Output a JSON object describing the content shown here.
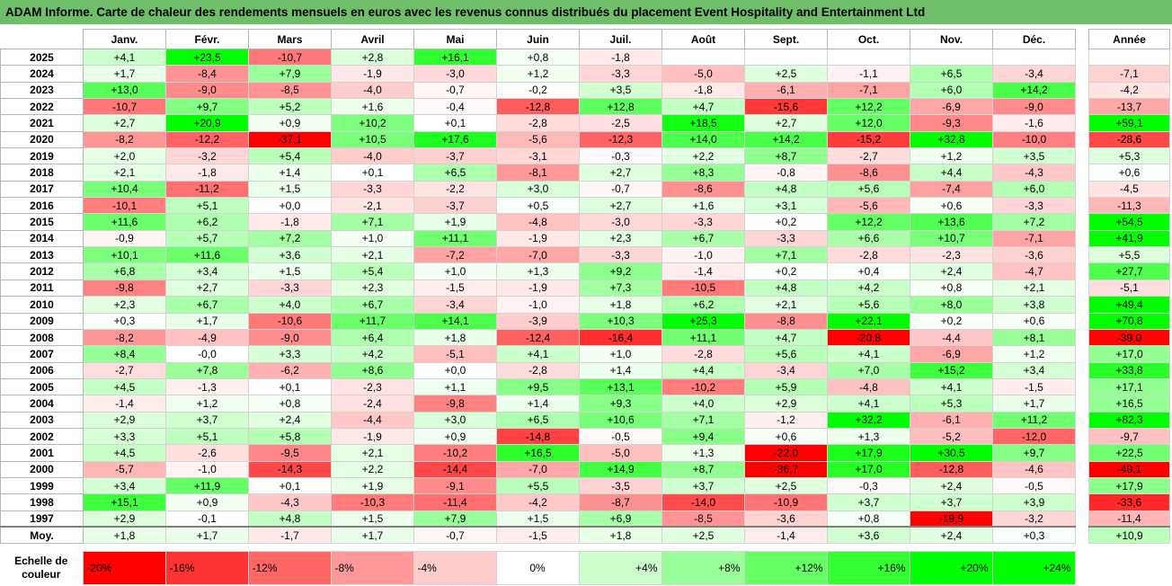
{
  "title": "ADAM Informe. Carte de chaleur des rendements mensuels en euros avec les revenus connus distribués du placement Event Hospitality and Entertainment Ltd",
  "chart_data": {
    "type": "heatmap",
    "months": [
      "Janv.",
      "Févr.",
      "Mars",
      "Avril",
      "Mai",
      "Juin",
      "Juil.",
      "Août",
      "Sept.",
      "Oct.",
      "Nov.",
      "Déc."
    ],
    "year_header": "Année",
    "rows": [
      {
        "year": "2025",
        "values": [
          "+4,1",
          "+23,5",
          "-10,7",
          "+2,8",
          "+16,1",
          "+0,8",
          "-1,8",
          "",
          "",
          "",
          "",
          ""
        ],
        "annual": ""
      },
      {
        "year": "2024",
        "values": [
          "+1,7",
          "-8,4",
          "+7,9",
          "-1,9",
          "-3,0",
          "+1,2",
          "-3,3",
          "-5,0",
          "+2,5",
          "-1,1",
          "+6,5",
          "-3,4"
        ],
        "annual": "-7,1"
      },
      {
        "year": "2023",
        "values": [
          "+13,0",
          "-9,0",
          "-8,5",
          "-4,0",
          "-0,7",
          "-0,2",
          "+3,5",
          "-1,8",
          "-6,1",
          "-7,1",
          "+6,0",
          "+14,2"
        ],
        "annual": "-4,2"
      },
      {
        "year": "2022",
        "values": [
          "-10,7",
          "+9,7",
          "+5,2",
          "+1,6",
          "-0,4",
          "-12,8",
          "+12,8",
          "+4,7",
          "-15,6",
          "+12,2",
          "-6,9",
          "-9,0"
        ],
        "annual": "-13,7"
      },
      {
        "year": "2021",
        "values": [
          "+2,7",
          "+20,9",
          "+0,9",
          "+10,2",
          "+0,1",
          "-2,8",
          "-2,5",
          "+18,5",
          "+2,7",
          "+12,0",
          "-9,3",
          "-1,6"
        ],
        "annual": "+59,1"
      },
      {
        "year": "2020",
        "values": [
          "-8,2",
          "-12,2",
          "-37,1",
          "+10,5",
          "+17,6",
          "-5,6",
          "-12,3",
          "+14,0",
          "+14,2",
          "-15,2",
          "+32,8",
          "-10,0"
        ],
        "annual": "-28,6"
      },
      {
        "year": "2019",
        "values": [
          "+2,0",
          "-3,2",
          "+5,4",
          "-4,0",
          "-3,7",
          "-3,1",
          "-0,3",
          "+2,2",
          "+8,7",
          "-2,7",
          "+1,2",
          "+3,5"
        ],
        "annual": "+5,3"
      },
      {
        "year": "2018",
        "values": [
          "+2,1",
          "-1,8",
          "+1,4",
          "+0,1",
          "+6,5",
          "-8,1",
          "+2,7",
          "+8,3",
          "-0,8",
          "-8,6",
          "+4,4",
          "-4,3"
        ],
        "annual": "+0,6"
      },
      {
        "year": "2017",
        "values": [
          "+10,4",
          "-11,2",
          "+1,5",
          "-3,3",
          "-2,2",
          "+3,0",
          "-0,7",
          "-8,6",
          "+4,8",
          "+5,6",
          "-7,4",
          "+6,0"
        ],
        "annual": "-4,5"
      },
      {
        "year": "2016",
        "values": [
          "-10,1",
          "+5,1",
          "+0,0",
          "-2,1",
          "-3,7",
          "+0,5",
          "+2,7",
          "+1,6",
          "+3,1",
          "-5,6",
          "+0,6",
          "-3,3"
        ],
        "annual": "-11,3"
      },
      {
        "year": "2015",
        "values": [
          "+11,6",
          "+6,2",
          "-1,8",
          "+7,1",
          "+1,9",
          "-4,8",
          "-3,0",
          "-3,3",
          "+0,2",
          "+12,2",
          "+13,6",
          "+7,2"
        ],
        "annual": "+54,5"
      },
      {
        "year": "2014",
        "values": [
          "-0,9",
          "+5,7",
          "+7,2",
          "+1,0",
          "+11,1",
          "-1,9",
          "+2,3",
          "+6,7",
          "-3,3",
          "+6,6",
          "+10,7",
          "-7,1"
        ],
        "annual": "+41,9"
      },
      {
        "year": "2013",
        "values": [
          "+10,1",
          "+11,6",
          "+3,6",
          "+2,1",
          "-7,2",
          "-7,0",
          "-3,3",
          "-1,0",
          "+7,1",
          "-2,8",
          "-2,3",
          "-3,6"
        ],
        "annual": "+5,5"
      },
      {
        "year": "2012",
        "values": [
          "+6,8",
          "+3,4",
          "+1,5",
          "+5,4",
          "+1,0",
          "+1,3",
          "+9,2",
          "-1,4",
          "+0,2",
          "+0,4",
          "+2,4",
          "-4,7"
        ],
        "annual": "+27,7"
      },
      {
        "year": "2011",
        "values": [
          "-9,8",
          "+2,7",
          "-3,3",
          "+2,3",
          "-1,5",
          "-1,9",
          "+7,3",
          "-10,5",
          "+4,8",
          "+4,2",
          "+0,8",
          "+2,1"
        ],
        "annual": "-5,1"
      },
      {
        "year": "2010",
        "values": [
          "+2,3",
          "+6,7",
          "+4,0",
          "+6,7",
          "-3,4",
          "-1,0",
          "+1,8",
          "+6,2",
          "+2,1",
          "+5,6",
          "+8,0",
          "+3,8"
        ],
        "annual": "+49,4"
      },
      {
        "year": "2009",
        "values": [
          "+0,3",
          "+1,7",
          "-10,6",
          "+11,7",
          "+14,1",
          "-3,9",
          "+10,3",
          "+25,3",
          "-8,8",
          "+22,1",
          "+0,2",
          "+0,6"
        ],
        "annual": "+70,8"
      },
      {
        "year": "2008",
        "values": [
          "-8,2",
          "-4,9",
          "-9,0",
          "+6,4",
          "+1,8",
          "-12,4",
          "-16,4",
          "+11,1",
          "+4,7",
          "-20,8",
          "-4,4",
          "+8,1"
        ],
        "annual": "-39,0"
      },
      {
        "year": "2007",
        "values": [
          "+8,4",
          "-0,0",
          "+3,3",
          "+4,2",
          "-5,1",
          "+4,1",
          "+1,0",
          "-2,8",
          "+5,6",
          "+4,1",
          "-6,9",
          "+1,2"
        ],
        "annual": "+17,0"
      },
      {
        "year": "2006",
        "values": [
          "-2,7",
          "+7,8",
          "-6,2",
          "+8,6",
          "+0,0",
          "-2,8",
          "+1,4",
          "+4,4",
          "-3,4",
          "+7,0",
          "+15,2",
          "+3,4"
        ],
        "annual": "+33,8"
      },
      {
        "year": "2005",
        "values": [
          "+4,5",
          "-1,3",
          "+0,1",
          "-2,3",
          "+1,1",
          "+9,5",
          "+13,1",
          "-10,2",
          "+5,9",
          "-4,8",
          "+4,1",
          "-1,5"
        ],
        "annual": "+17,1"
      },
      {
        "year": "2004",
        "values": [
          "-1,4",
          "+1,2",
          "+0,8",
          "-2,4",
          "-9,8",
          "+1,4",
          "+9,3",
          "+4,0",
          "+2,9",
          "+4,1",
          "+5,3",
          "+1,7"
        ],
        "annual": "+16,5"
      },
      {
        "year": "2003",
        "values": [
          "+2,9",
          "+3,7",
          "+2,4",
          "-4,4",
          "+3,0",
          "+6,5",
          "+10,6",
          "+7,1",
          "-1,2",
          "+32,2",
          "-6,1",
          "+11,2"
        ],
        "annual": "+82,3"
      },
      {
        "year": "2002",
        "values": [
          "+3,3",
          "+5,1",
          "+5,8",
          "-1,9",
          "+0,9",
          "-14,8",
          "-0,5",
          "+9,4",
          "+0,6",
          "+1,3",
          "-5,2",
          "-12,0"
        ],
        "annual": "-9,7"
      },
      {
        "year": "2001",
        "values": [
          "+4,5",
          "-2,6",
          "-9,5",
          "+2,1",
          "-10,2",
          "+16,5",
          "-5,0",
          "+1,3",
          "-22,0",
          "+17,9",
          "+30,5",
          "+9,7"
        ],
        "annual": "+22,5"
      },
      {
        "year": "2000",
        "values": [
          "-5,7",
          "-1,0",
          "-14,3",
          "+2,2",
          "-14,4",
          "-7,0",
          "+14,9",
          "+8,7",
          "-36,7",
          "+17,0",
          "-12,8",
          "-4,6"
        ],
        "annual": "-49,1"
      },
      {
        "year": "1999",
        "values": [
          "+3,4",
          "+11,9",
          "+0,1",
          "+1,9",
          "-9,1",
          "+5,5",
          "-3,5",
          "+3,7",
          "+2,5",
          "-0,3",
          "+2,4",
          "-0,5"
        ],
        "annual": "+17,9"
      },
      {
        "year": "1998",
        "values": [
          "+15,1",
          "+0,9",
          "-4,3",
          "-10,3",
          "-11,4",
          "-4,2",
          "-8,7",
          "-14,0",
          "-10,9",
          "+3,7",
          "+3,7",
          "+3,9"
        ],
        "annual": "-33,6"
      },
      {
        "year": "1997",
        "values": [
          "+2,9",
          "-0,1",
          "+4,8",
          "+1,5",
          "+7,9",
          "+1,5",
          "+6,9",
          "-8,5",
          "-3,6",
          "+0,8",
          "-19,9",
          "-3,2"
        ],
        "annual": "-11,4"
      }
    ],
    "average": {
      "label": "Moy.",
      "values": [
        "+1,8",
        "+1,7",
        "-1,7",
        "+1,7",
        "-0,7",
        "-1,5",
        "+1,8",
        "+2,5",
        "-1,4",
        "+3,6",
        "+2,4",
        "+0,3"
      ],
      "annual": "+10,9"
    },
    "scale": {
      "label_line1": "Echelle de",
      "label_line2": "couleur",
      "labels": [
        "-20%",
        "-16%",
        "-12%",
        "-8%",
        "-4%",
        "0%",
        "+4%",
        "+8%",
        "+12%",
        "+16%",
        "+20%",
        "+24%"
      ],
      "values": [
        -20,
        -16,
        -12,
        -8,
        -4,
        0,
        4,
        8,
        12,
        16,
        20,
        24
      ]
    },
    "colors": {
      "negative": "#ff0000",
      "positive": "#00ff00",
      "neutral": "#ffffff",
      "title_bar": "#6fbf6a"
    }
  }
}
